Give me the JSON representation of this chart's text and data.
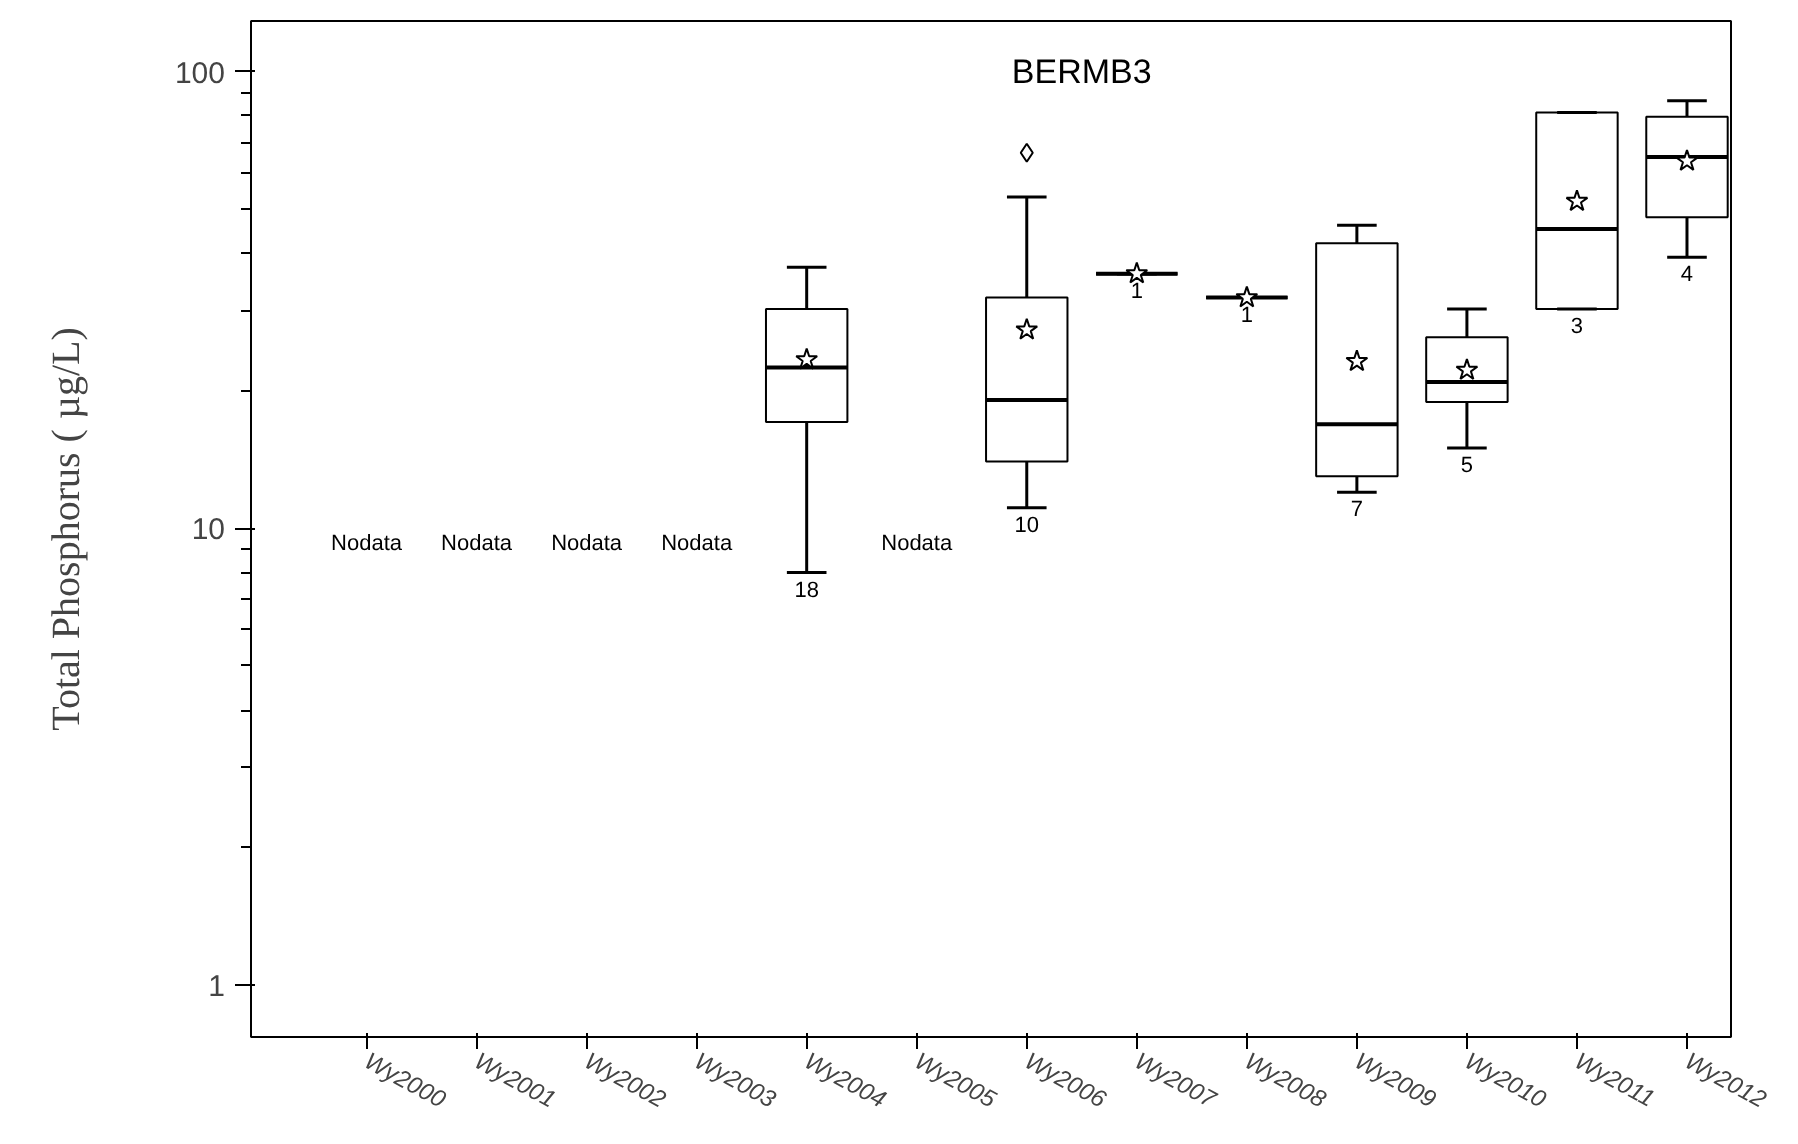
{
  "chart_data": {
    "type": "box",
    "title": "BERMB3",
    "ylabel": "Total Phosphorus ( µg/L)",
    "categories": [
      "Wy2000",
      "Wy2001",
      "Wy2002",
      "Wy2003",
      "Wy2004",
      "Wy2005",
      "Wy2006",
      "Wy2007",
      "Wy2008",
      "Wy2009",
      "Wy2010",
      "Wy2011",
      "Wy2012"
    ],
    "boxes": [
      null,
      null,
      null,
      null,
      {
        "low": 8.0,
        "q1": 17.1,
        "median": 22.5,
        "q3": 30.2,
        "high": 37.3,
        "mean": 23.4
      },
      null,
      {
        "low": 11.1,
        "q1": 14.0,
        "median": 19.1,
        "q3": 32.0,
        "high": 53.1,
        "mean": 27.2,
        "outliers": [
          66.4
        ]
      },
      {
        "low": 36.1,
        "q1": 36.1,
        "median": 36.1,
        "q3": 36.1,
        "high": 36.1,
        "mean": 36.1
      },
      {
        "low": 32.0,
        "q1": 32.0,
        "median": 32.0,
        "q3": 32.0,
        "high": 32.0,
        "mean": 32.0
      },
      {
        "low": 12.0,
        "q1": 13.0,
        "median": 16.9,
        "q3": 42.1,
        "high": 46.1,
        "mean": 23.2
      },
      {
        "low": 15.0,
        "q1": 18.9,
        "median": 20.9,
        "q3": 26.2,
        "high": 30.2,
        "mean": 22.2
      },
      {
        "low": 30.2,
        "q1": 30.2,
        "median": 45.2,
        "q3": 81.3,
        "high": 81.3,
        "mean": 52.0
      },
      {
        "low": 39.2,
        "q1": 48.0,
        "median": 65.0,
        "q3": 79.6,
        "high": 86.3,
        "mean": 63.7
      }
    ],
    "log": "y",
    "ylim": [
      0.77,
      129
    ],
    "yticks": [
      1,
      {
        "value": 2,
        "label": null
      },
      {
        "value": 3,
        "label": null
      },
      {
        "value": 4,
        "label": null
      },
      {
        "value": 5,
        "label": null
      },
      {
        "value": 6,
        "label": null
      },
      {
        "value": 7,
        "label": null
      },
      {
        "value": 8,
        "label": null
      },
      {
        "value": 9,
        "label": null
      },
      10,
      {
        "value": 20,
        "label": null
      },
      {
        "value": 30,
        "label": null
      },
      {
        "value": 40,
        "label": null
      },
      {
        "value": 50,
        "label": null
      },
      {
        "value": 60,
        "label": null
      },
      {
        "value": 70,
        "label": null
      },
      {
        "value": 80,
        "label": null
      },
      {
        "value": 90,
        "label": null
      },
      100
    ],
    "marker": "star",
    "annotations": [
      "Nodata",
      "Nodata",
      "Nodata",
      "Nodata",
      "Nodata",
      "18",
      "10",
      "1",
      "1",
      "7",
      "5",
      "3",
      "4"
    ]
  }
}
